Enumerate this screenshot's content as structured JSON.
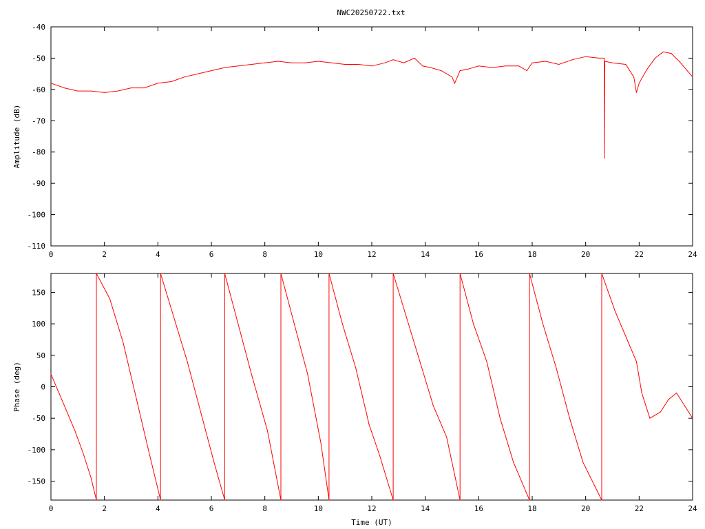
{
  "title": "NWC20250722.txt",
  "colors": {
    "series": "#ff0000",
    "axis": "#000000",
    "background": "#ffffff"
  },
  "chart_data": [
    {
      "type": "line",
      "title": "NWC20250722.txt",
      "xlabel": "",
      "ylabel": "Amplitude (dB)",
      "xlim": [
        0,
        24
      ],
      "ylim": [
        -110,
        -40
      ],
      "xticks": [
        0,
        2,
        4,
        6,
        8,
        10,
        12,
        14,
        16,
        18,
        20,
        22,
        24
      ],
      "yticks": [
        -110,
        -100,
        -90,
        -80,
        -70,
        -60,
        -50,
        -40
      ],
      "grid": false,
      "series": [
        {
          "x": [
            0,
            0.5,
            1,
            1.5,
            2,
            2.5,
            3,
            3.5,
            4,
            4.5,
            5,
            5.5,
            6,
            6.5,
            7,
            7.5,
            8,
            8.5,
            9,
            9.5,
            10,
            10.5,
            11,
            11.5,
            12,
            12.5,
            12.8,
            13.2,
            13.6,
            13.9,
            14.2,
            14.6,
            15,
            15.1,
            15.3,
            15.6,
            16,
            16.5,
            17,
            17.5,
            17.8,
            18,
            18.5,
            19,
            19.5,
            20,
            20.5,
            20.7,
            20.7,
            20.72,
            21,
            21.5,
            21.8,
            21.9,
            22,
            22.3,
            22.6,
            22.9,
            23.2,
            23.5,
            23.8,
            24
          ],
          "y": [
            -58,
            -59.5,
            -60.5,
            -60.5,
            -61,
            -60.5,
            -59.5,
            -59.5,
            -58,
            -57.5,
            -56,
            -55,
            -54,
            -53,
            -52.5,
            -52,
            -51.5,
            -51,
            -51.5,
            -51.5,
            -51,
            -51.5,
            -52,
            -52,
            -52.5,
            -51.5,
            -50.5,
            -51.5,
            -50,
            -52.5,
            -53,
            -54,
            -56,
            -58,
            -54,
            -53.5,
            -52.5,
            -53,
            -52.5,
            -52.5,
            -54,
            -51.5,
            -51,
            -52,
            -50.5,
            -49.5,
            -50,
            -50,
            -82,
            -51,
            -51.5,
            -52,
            -56,
            -61,
            -58,
            -53.5,
            -50,
            -48,
            -48.5,
            -51,
            -54,
            -56
          ]
        }
      ]
    },
    {
      "type": "line",
      "title": "",
      "xlabel": "Time (UT)",
      "ylabel": "Phase (deg)",
      "xlim": [
        0,
        24
      ],
      "ylim": [
        -180,
        180
      ],
      "xticks": [
        0,
        2,
        4,
        6,
        8,
        10,
        12,
        14,
        16,
        18,
        20,
        22,
        24
      ],
      "yticks": [
        -150,
        -100,
        -50,
        0,
        50,
        100,
        150
      ],
      "grid": false,
      "series": [
        {
          "x": [
            0,
            0.3,
            0.6,
            0.9,
            1.2,
            1.5,
            1.7,
            1.7,
            2.2,
            2.7,
            3.2,
            3.7,
            4.1,
            4.1,
            4.6,
            5.1,
            5.6,
            6.1,
            6.5,
            6.5,
            7,
            7.5,
            8.1,
            8.6,
            8.6,
            9.1,
            9.6,
            10.1,
            10.4,
            10.4,
            10.9,
            11.4,
            11.9,
            12.3,
            12.8,
            12.8,
            13.3,
            13.8,
            14.3,
            14.8,
            15.3,
            15.3,
            15.8,
            16.3,
            16.8,
            17.3,
            17.9,
            17.9,
            18.4,
            18.9,
            19.4,
            19.9,
            20.6,
            20.6,
            21.1,
            21.6,
            21.9,
            22.1,
            22.4,
            22.8,
            23.1,
            23.4,
            23.7,
            24
          ],
          "y": [
            20,
            -10,
            -40,
            -70,
            -105,
            -145,
            -180,
            180,
            140,
            70,
            -20,
            -110,
            -180,
            180,
            110,
            40,
            -40,
            -120,
            -180,
            180,
            100,
            20,
            -70,
            -180,
            180,
            100,
            20,
            -90,
            -180,
            180,
            100,
            30,
            -60,
            -110,
            -180,
            180,
            110,
            40,
            -30,
            -80,
            -180,
            180,
            100,
            40,
            -50,
            -120,
            -180,
            180,
            100,
            30,
            -50,
            -120,
            -180,
            180,
            120,
            70,
            40,
            -10,
            -50,
            -40,
            -20,
            -10,
            -30,
            -50
          ]
        }
      ]
    }
  ]
}
